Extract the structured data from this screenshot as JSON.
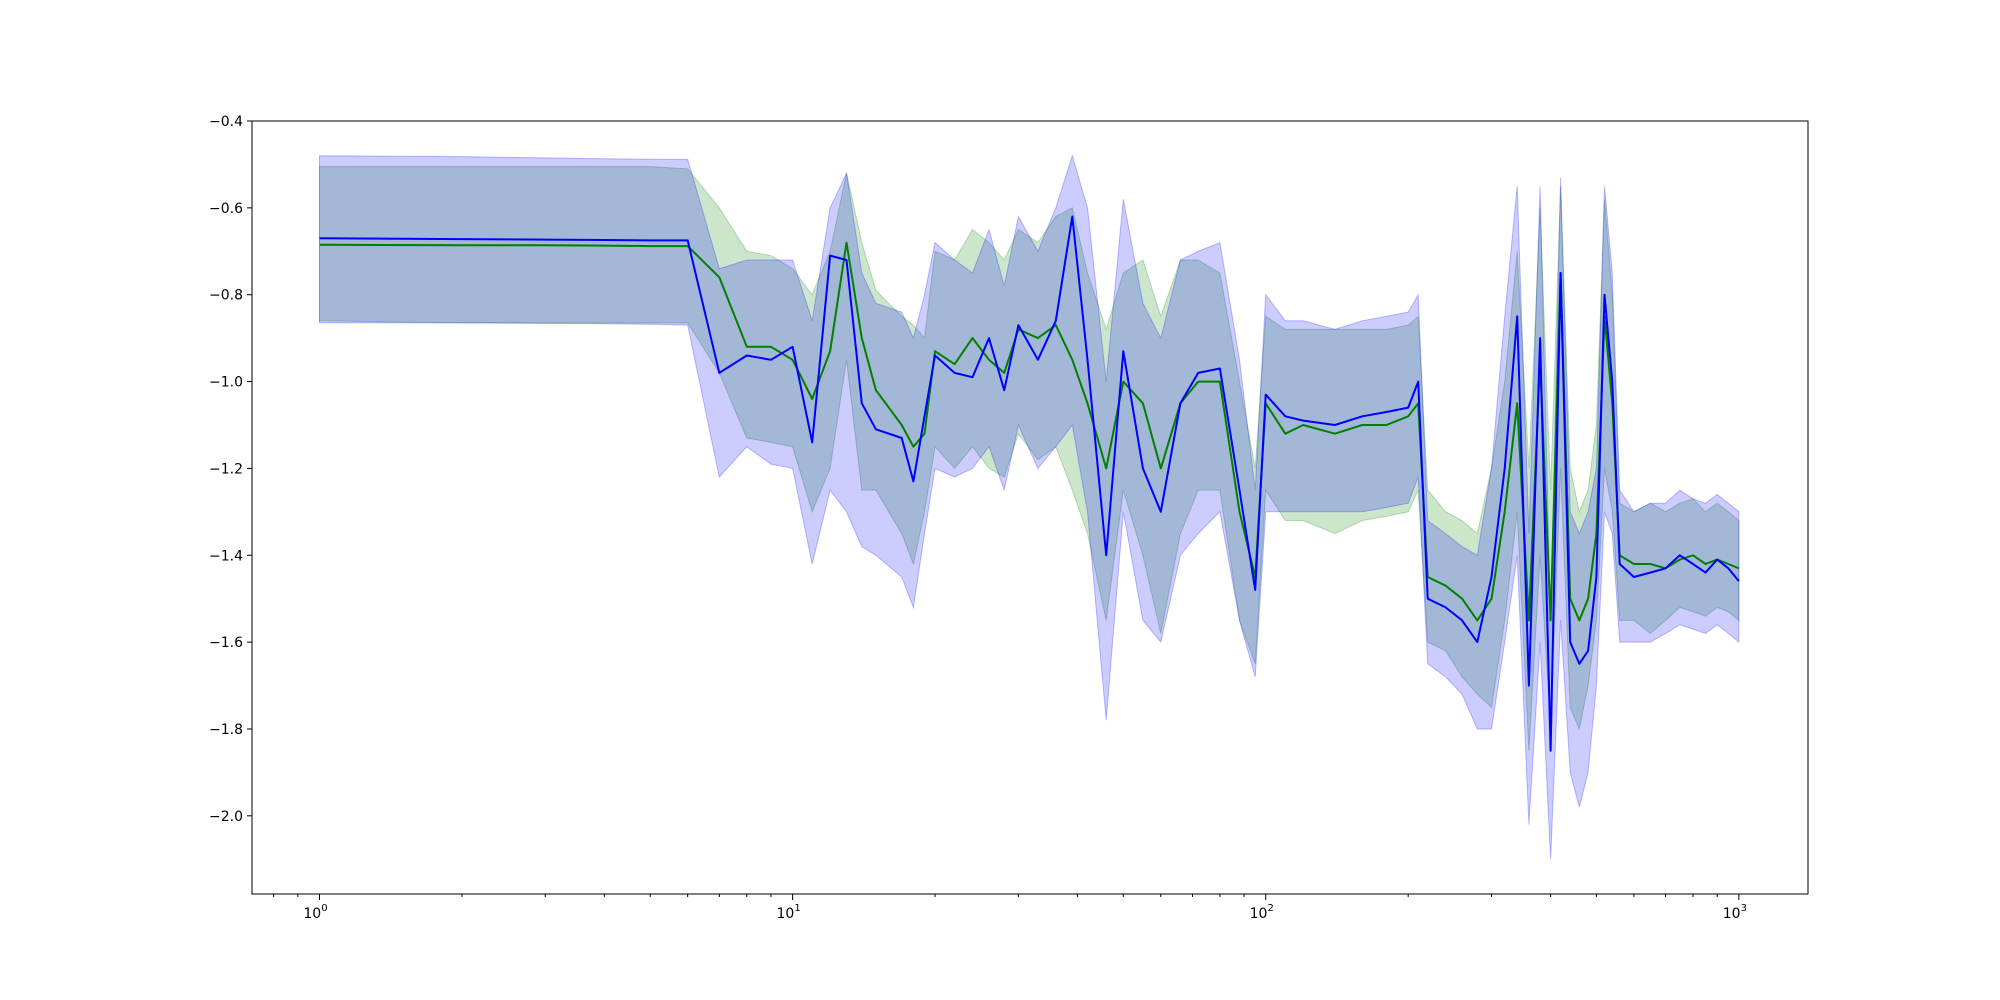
{
  "chart_data": {
    "type": "line",
    "title": "",
    "xlabel": "",
    "ylabel": "",
    "xscale": "log",
    "xlim": [
      0.72,
      1400
    ],
    "ylim": [
      -2.18,
      -0.4
    ],
    "grid": false,
    "legend": "none",
    "x_ticks": [
      {
        "value": 1,
        "base": "10",
        "exp": "0"
      },
      {
        "value": 10,
        "base": "10",
        "exp": "1"
      },
      {
        "value": 100,
        "base": "10",
        "exp": "2"
      },
      {
        "value": 1000,
        "base": "10",
        "exp": "3"
      }
    ],
    "y_ticks": [
      {
        "value": -0.4,
        "label": "−0.4"
      },
      {
        "value": -0.6,
        "label": "−0.6"
      },
      {
        "value": -0.8,
        "label": "−0.8"
      },
      {
        "value": -1.0,
        "label": "−1.0"
      },
      {
        "value": -1.2,
        "label": "−1.2"
      },
      {
        "value": -1.4,
        "label": "−1.4"
      },
      {
        "value": -1.6,
        "label": "−1.6"
      },
      {
        "value": -1.8,
        "label": "−1.8"
      },
      {
        "value": -2.0,
        "label": "−2.0"
      }
    ],
    "series": [
      {
        "color": "#008000",
        "band_color": "#008000",
        "band_opacity": 0.2,
        "x": [
          1,
          2,
          3,
          4,
          5,
          6,
          7,
          8,
          9,
          10,
          11,
          12,
          13,
          14,
          15,
          17,
          18,
          19,
          20,
          22,
          24,
          26,
          28,
          30,
          33,
          36,
          39,
          42,
          46,
          50,
          55,
          60,
          66,
          72,
          80,
          88,
          95,
          100,
          110,
          120,
          140,
          160,
          180,
          200,
          210,
          220,
          240,
          260,
          280,
          300,
          320,
          340,
          360,
          380,
          400,
          420,
          440,
          460,
          480,
          500,
          520,
          540,
          560,
          600,
          650,
          700,
          750,
          800,
          850,
          900,
          950,
          1000
        ],
        "y": [
          -0.685,
          -0.686,
          -0.686,
          -0.687,
          -0.688,
          -0.688,
          -0.76,
          -0.92,
          -0.92,
          -0.95,
          -1.04,
          -0.93,
          -0.68,
          -0.9,
          -1.02,
          -1.1,
          -1.15,
          -1.12,
          -0.93,
          -0.96,
          -0.9,
          -0.95,
          -0.98,
          -0.88,
          -0.9,
          -0.87,
          -0.95,
          -1.05,
          -1.2,
          -1.0,
          -1.05,
          -1.2,
          -1.05,
          -1.0,
          -1.0,
          -1.3,
          -1.45,
          -1.05,
          -1.12,
          -1.1,
          -1.12,
          -1.1,
          -1.1,
          -1.08,
          -1.05,
          -1.45,
          -1.47,
          -1.5,
          -1.55,
          -1.5,
          -1.3,
          -1.05,
          -1.55,
          -0.95,
          -1.55,
          -0.75,
          -1.5,
          -1.55,
          -1.5,
          -1.35,
          -0.85,
          -1.05,
          -1.4,
          -1.42,
          -1.42,
          -1.43,
          -1.41,
          -1.4,
          -1.42,
          -1.41,
          -1.42,
          -1.43
        ],
        "lower": [
          -0.86,
          -0.865,
          -0.865,
          -0.865,
          -0.865,
          -0.865,
          -0.98,
          -1.13,
          -1.14,
          -1.15,
          -1.3,
          -1.2,
          -0.95,
          -1.25,
          -1.25,
          -1.35,
          -1.42,
          -1.3,
          -1.15,
          -1.2,
          -1.15,
          -1.2,
          -1.22,
          -1.12,
          -1.18,
          -1.15,
          -1.25,
          -1.35,
          -1.55,
          -1.25,
          -1.4,
          -1.58,
          -1.35,
          -1.25,
          -1.25,
          -1.55,
          -1.65,
          -1.25,
          -1.32,
          -1.32,
          -1.35,
          -1.32,
          -1.31,
          -1.3,
          -1.25,
          -1.6,
          -1.62,
          -1.68,
          -1.72,
          -1.75,
          -1.55,
          -1.3,
          -1.85,
          -1.4,
          -1.8,
          -1.2,
          -1.75,
          -1.8,
          -1.7,
          -1.55,
          -1.2,
          -1.3,
          -1.55,
          -1.55,
          -1.58,
          -1.55,
          -1.52,
          -1.53,
          -1.54,
          -1.52,
          -1.53,
          -1.55
        ],
        "upper": [
          -0.505,
          -0.505,
          -0.505,
          -0.505,
          -0.505,
          -0.51,
          -0.6,
          -0.7,
          -0.71,
          -0.74,
          -0.8,
          -0.7,
          -0.52,
          -0.68,
          -0.79,
          -0.85,
          -0.87,
          -0.9,
          -0.7,
          -0.72,
          -0.65,
          -0.68,
          -0.72,
          -0.65,
          -0.68,
          -0.62,
          -0.6,
          -0.75,
          -0.88,
          -0.75,
          -0.72,
          -0.85,
          -0.72,
          -0.72,
          -0.75,
          -1.0,
          -1.2,
          -0.85,
          -0.88,
          -0.88,
          -0.88,
          -0.88,
          -0.88,
          -0.87,
          -0.85,
          -1.25,
          -1.3,
          -1.32,
          -1.35,
          -1.2,
          -1.0,
          -0.7,
          -1.2,
          -0.6,
          -1.25,
          -0.55,
          -1.2,
          -1.3,
          -1.25,
          -1.1,
          -0.58,
          -0.8,
          -1.28,
          -1.3,
          -1.28,
          -1.3,
          -1.28,
          -1.27,
          -1.3,
          -1.28,
          -1.3,
          -1.32
        ]
      },
      {
        "color": "#0000ff",
        "band_color": "#0000ff",
        "band_opacity": 0.2,
        "x": [
          1,
          2,
          3,
          4,
          5,
          6,
          7,
          8,
          9,
          10,
          11,
          12,
          13,
          14,
          15,
          17,
          18,
          19,
          20,
          22,
          24,
          26,
          28,
          30,
          33,
          36,
          39,
          42,
          46,
          50,
          55,
          60,
          66,
          72,
          80,
          88,
          95,
          100,
          110,
          120,
          140,
          160,
          180,
          200,
          210,
          220,
          240,
          260,
          280,
          300,
          320,
          340,
          360,
          380,
          400,
          420,
          440,
          460,
          480,
          500,
          520,
          540,
          560,
          600,
          650,
          700,
          750,
          800,
          850,
          900,
          950,
          1000
        ],
        "y": [
          -0.67,
          -0.672,
          -0.673,
          -0.674,
          -0.675,
          -0.675,
          -0.98,
          -0.94,
          -0.95,
          -0.92,
          -1.14,
          -0.71,
          -0.72,
          -1.05,
          -1.11,
          -1.13,
          -1.23,
          -1.08,
          -0.94,
          -0.98,
          -0.99,
          -0.9,
          -1.02,
          -0.87,
          -0.95,
          -0.86,
          -0.62,
          -0.95,
          -1.4,
          -0.93,
          -1.2,
          -1.3,
          -1.05,
          -0.98,
          -0.97,
          -1.25,
          -1.48,
          -1.03,
          -1.08,
          -1.09,
          -1.1,
          -1.08,
          -1.07,
          -1.06,
          -1.0,
          -1.5,
          -1.52,
          -1.55,
          -1.6,
          -1.45,
          -1.2,
          -0.85,
          -1.7,
          -0.9,
          -1.85,
          -0.75,
          -1.6,
          -1.65,
          -1.62,
          -1.45,
          -0.8,
          -1.0,
          -1.42,
          -1.45,
          -1.44,
          -1.43,
          -1.4,
          -1.42,
          -1.44,
          -1.41,
          -1.43,
          -1.46
        ],
        "lower": [
          -0.865,
          -0.865,
          -0.866,
          -0.867,
          -0.868,
          -0.87,
          -1.22,
          -1.15,
          -1.19,
          -1.2,
          -1.42,
          -1.25,
          -1.3,
          -1.38,
          -1.4,
          -1.45,
          -1.52,
          -1.35,
          -1.2,
          -1.22,
          -1.2,
          -1.15,
          -1.25,
          -1.1,
          -1.2,
          -1.15,
          -1.1,
          -1.3,
          -1.78,
          -1.3,
          -1.55,
          -1.6,
          -1.4,
          -1.35,
          -1.3,
          -1.55,
          -1.68,
          -1.3,
          -1.3,
          -1.3,
          -1.3,
          -1.3,
          -1.29,
          -1.28,
          -1.22,
          -1.65,
          -1.68,
          -1.72,
          -1.8,
          -1.8,
          -1.6,
          -1.4,
          -2.02,
          -1.6,
          -2.1,
          -1.55,
          -1.9,
          -1.98,
          -1.9,
          -1.7,
          -1.3,
          -1.35,
          -1.6,
          -1.6,
          -1.6,
          -1.58,
          -1.56,
          -1.57,
          -1.58,
          -1.56,
          -1.58,
          -1.6
        ],
        "upper": [
          -0.48,
          -0.482,
          -0.485,
          -0.487,
          -0.488,
          -0.488,
          -0.74,
          -0.72,
          -0.72,
          -0.72,
          -0.86,
          -0.6,
          -0.52,
          -0.75,
          -0.82,
          -0.84,
          -0.9,
          -0.8,
          -0.68,
          -0.72,
          -0.75,
          -0.65,
          -0.78,
          -0.62,
          -0.7,
          -0.6,
          -0.48,
          -0.6,
          -1.0,
          -0.58,
          -0.82,
          -0.9,
          -0.72,
          -0.7,
          -0.68,
          -0.95,
          -1.25,
          -0.8,
          -0.86,
          -0.86,
          -0.88,
          -0.86,
          -0.85,
          -0.84,
          -0.8,
          -1.32,
          -1.35,
          -1.38,
          -1.4,
          -1.2,
          -0.85,
          -0.55,
          -1.35,
          -0.55,
          -1.55,
          -0.53,
          -1.3,
          -1.35,
          -1.3,
          -1.2,
          -0.55,
          -0.75,
          -1.25,
          -1.3,
          -1.28,
          -1.28,
          -1.25,
          -1.27,
          -1.28,
          -1.26,
          -1.28,
          -1.3
        ]
      }
    ]
  }
}
